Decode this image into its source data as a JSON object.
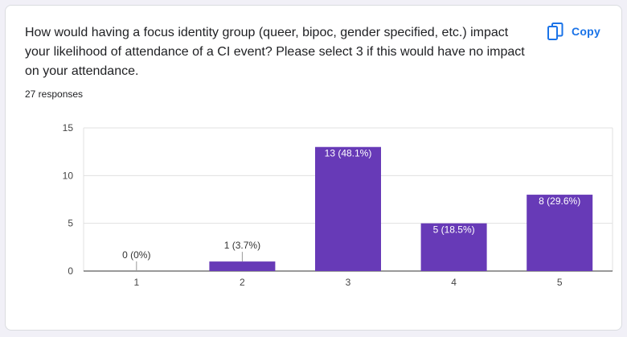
{
  "question": {
    "text": "How would having a focus identity group (queer, bipoc, gender specified, etc.) impact your likelihood of attendance of a CI event? Please select 3 if this would have no impact on your attendance.",
    "responses": "27 responses"
  },
  "copy_button": {
    "label": "Copy",
    "icon": "copy-icon"
  },
  "colors": {
    "bar": "#673ab7",
    "accent": "#1a73e8",
    "grid": "#e0e0e0",
    "axis": "#333333"
  },
  "chart_data": {
    "type": "bar",
    "categories": [
      "1",
      "2",
      "3",
      "4",
      "5"
    ],
    "values": [
      0,
      1,
      13,
      5,
      8
    ],
    "data_labels": [
      "0 (0%)",
      "1 (3.7%)",
      "13 (48.1%)",
      "5 (18.5%)",
      "8 (29.6%)"
    ],
    "y_ticks": [
      0,
      5,
      10,
      15
    ],
    "ylim": [
      0,
      15
    ],
    "grid": true,
    "legend": "none"
  }
}
